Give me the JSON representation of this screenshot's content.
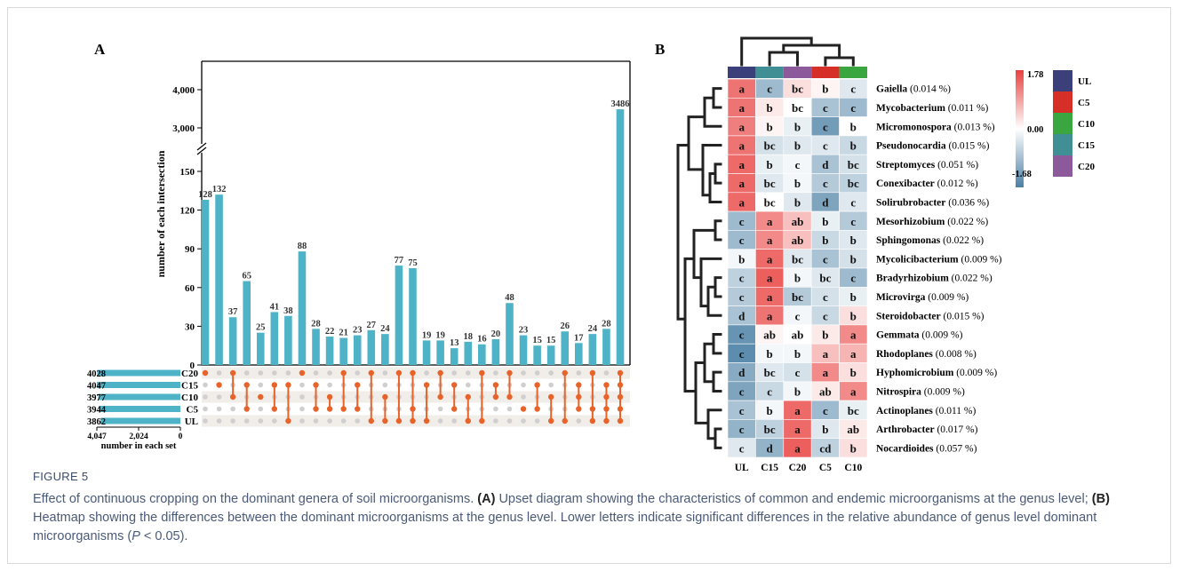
{
  "figure": {
    "label": "FIGURE 5",
    "caption_intro": "Effect of continuous cropping on the dominant genera of soil microorganisms.",
    "caption_a_label": "(A)",
    "caption_a_text": "Upset diagram showing the characteristics of common and endemic microorganisms at the genus level;",
    "caption_b_label": "(B)",
    "caption_b_text": "Heatmap showing the differences between the dominant microorganisms at the genus level. Lower letters indicate significant differences in the relative abundance of genus level dominant microorganisms (",
    "caption_p": "P",
    "caption_tail": " < 0.05)."
  },
  "colors": {
    "bar": "#4fb3c8",
    "dot_active": "#e8632a",
    "dot_inactive": "#cfcfcf",
    "stripe": "#f1ede8",
    "heat_high": "#e8413f",
    "heat_mid": "#ffffff",
    "heat_low": "#4a7fa4",
    "UL": "#3b3f7a",
    "C5": "#d62f27",
    "C10": "#3aa640",
    "C15": "#3f8f94",
    "C20": "#8c5a9a"
  },
  "chart_data": [
    {
      "type": "bar",
      "panel": "A",
      "ylabel": "number of each intersection",
      "ticks_low": [
        "0",
        "30",
        "60",
        "90",
        "120",
        "150"
      ],
      "ticks_high": [
        "3,000",
        "4,000"
      ],
      "values": [
        128,
        132,
        37,
        65,
        25,
        41,
        38,
        88,
        28,
        22,
        21,
        23,
        27,
        24,
        77,
        75,
        19,
        19,
        13,
        18,
        16,
        20,
        48,
        23,
        15,
        15,
        26,
        17,
        24,
        28,
        3486
      ],
      "labels": [
        "128",
        "132",
        "37",
        "65",
        "25",
        "41",
        "38",
        "88",
        "28",
        "22",
        "21",
        "23",
        "27",
        "24",
        "77",
        "75",
        "19",
        "19",
        "13",
        "18",
        "16",
        "20",
        "48",
        "23",
        "15",
        "15",
        "26",
        "17",
        "24",
        "28",
        "3486"
      ],
      "sets": [
        "C20",
        "C15",
        "C10",
        "C5",
        "UL"
      ],
      "set_sizes": [
        4028,
        4047,
        3977,
        3944,
        3862
      ],
      "set_size_labels": [
        "4028",
        "4047",
        "3977",
        "3944",
        "3862"
      ],
      "set_axis_ticks": [
        "4,047",
        "2,024",
        "0"
      ],
      "set_axis_label": "number in each set",
      "membership": [
        [
          0
        ],
        [
          1
        ],
        [
          0,
          2
        ],
        [
          1,
          3
        ],
        [
          2
        ],
        [
          1,
          3
        ],
        [
          1,
          4
        ],
        [
          0
        ],
        [
          1,
          3
        ],
        [
          2,
          3
        ],
        [
          0,
          3
        ],
        [
          1,
          3
        ],
        [
          0,
          4
        ],
        [
          2,
          4
        ],
        [
          0,
          4
        ],
        [
          0,
          3,
          4
        ],
        [
          1,
          4
        ],
        [
          0,
          2
        ],
        [
          1,
          3
        ],
        [
          2,
          4
        ],
        [
          0,
          4
        ],
        [
          1,
          2
        ],
        [
          0,
          2
        ],
        [
          3
        ],
        [
          1,
          3
        ],
        [
          2,
          4
        ],
        [
          0,
          4
        ],
        [
          1,
          2,
          3
        ],
        [
          0,
          3,
          4
        ],
        [
          1,
          2,
          3,
          4
        ],
        [
          0,
          1,
          2,
          3,
          4
        ]
      ]
    },
    {
      "type": "heatmap",
      "panel": "B",
      "columns": [
        "UL",
        "C15",
        "C20",
        "C5",
        "C10"
      ],
      "column_groups": [
        "UL",
        "C15",
        "C20",
        "C5",
        "C10"
      ],
      "rows": [
        {
          "genus": "Gaiella",
          "pct": "(0.014 %)",
          "values": [
            1.3,
            -0.9,
            0.3,
            0.1,
            -0.3
          ],
          "letters": [
            "a",
            "c",
            "bc",
            "b",
            "c"
          ]
        },
        {
          "genus": "Mycobacterium",
          "pct": "(0.011 %)",
          "values": [
            1.3,
            0.2,
            0.0,
            -0.8,
            -0.9
          ],
          "letters": [
            "a",
            "b",
            "bc",
            "c",
            "c"
          ]
        },
        {
          "genus": "Micromonospora",
          "pct": "(0.013 %)",
          "values": [
            1.2,
            0.1,
            -0.2,
            -1.3,
            0.0
          ],
          "letters": [
            "a",
            "b",
            "b",
            "c",
            "b"
          ]
        },
        {
          "genus": "Pseudonocardia",
          "pct": "(0.015 %)",
          "values": [
            1.3,
            -0.4,
            -0.3,
            -0.3,
            -0.5
          ],
          "letters": [
            "a",
            "bc",
            "b",
            "c",
            "b"
          ]
        },
        {
          "genus": "Streptomyces",
          "pct": "(0.051 %)",
          "values": [
            1.4,
            -0.2,
            -0.1,
            -0.8,
            -0.4
          ],
          "letters": [
            "a",
            "b",
            "c",
            "d",
            "bc"
          ]
        },
        {
          "genus": "Conexibacter",
          "pct": "(0.012 %)",
          "values": [
            1.4,
            -0.3,
            -0.1,
            -0.7,
            -0.6
          ],
          "letters": [
            "a",
            "bc",
            "b",
            "c",
            "bc"
          ]
        },
        {
          "genus": "Solirubrobacter",
          "pct": "(0.036 %)",
          "values": [
            1.4,
            0.0,
            -0.3,
            -1.2,
            -0.3
          ],
          "letters": [
            "a",
            "bc",
            "b",
            "d",
            "c"
          ]
        },
        {
          "genus": "Mesorhizobium",
          "pct": "(0.022 %)",
          "values": [
            -0.9,
            1.1,
            0.6,
            -0.2,
            -0.7
          ],
          "letters": [
            "c",
            "a",
            "ab",
            "b",
            "c"
          ]
        },
        {
          "genus": "Sphingomonas",
          "pct": "(0.022 %)",
          "values": [
            -0.9,
            1.1,
            0.6,
            -0.5,
            -0.3
          ],
          "letters": [
            "c",
            "a",
            "ab",
            "b",
            "b"
          ]
        },
        {
          "genus": "Mycolicibacterium",
          "pct": "(0.009 %)",
          "values": [
            -0.1,
            1.4,
            -0.3,
            -0.8,
            -0.4
          ],
          "letters": [
            "b",
            "a",
            "bc",
            "c",
            "b"
          ]
        },
        {
          "genus": "Bradyrhizobium",
          "pct": "(0.022 %)",
          "values": [
            -0.6,
            1.5,
            -0.1,
            -0.3,
            -0.9
          ],
          "letters": [
            "c",
            "a",
            "b",
            "bc",
            "c"
          ]
        },
        {
          "genus": "Microvirga",
          "pct": "(0.009 %)",
          "values": [
            -0.7,
            1.4,
            -0.7,
            -0.4,
            -0.2
          ],
          "letters": [
            "c",
            "a",
            "bc",
            "c",
            "b"
          ]
        },
        {
          "genus": "Steroidobacter",
          "pct": "(0.015 %)",
          "values": [
            -0.8,
            1.3,
            -0.1,
            -0.5,
            0.3
          ],
          "letters": [
            "d",
            "a",
            "c",
            "c",
            "b"
          ]
        },
        {
          "genus": "Gemmata",
          "pct": "(0.009 %)",
          "values": [
            -1.4,
            0.1,
            0.0,
            0.2,
            1.1
          ],
          "letters": [
            "c",
            "ab",
            "ab",
            "b",
            "a"
          ]
        },
        {
          "genus": "Rhodoplanes",
          "pct": "(0.008 %)",
          "values": [
            -1.5,
            -0.1,
            -0.1,
            0.6,
            0.7
          ],
          "letters": [
            "c",
            "b",
            "b",
            "a",
            "a"
          ]
        },
        {
          "genus": "Hyphomicrobium",
          "pct": "(0.009 %)",
          "values": [
            -1.1,
            -0.3,
            -0.4,
            1.1,
            0.3
          ],
          "letters": [
            "d",
            "bc",
            "c",
            "a",
            "b"
          ]
        },
        {
          "genus": "Nitrospira",
          "pct": "(0.009 %)",
          "values": [
            -1.2,
            -0.5,
            -0.1,
            0.2,
            1.1
          ],
          "letters": [
            "c",
            "c",
            "b",
            "ab",
            "a"
          ]
        },
        {
          "genus": "Actinoplanes",
          "pct": "(0.011 %)",
          "values": [
            -0.8,
            -0.1,
            1.4,
            -0.9,
            -0.2
          ],
          "letters": [
            "c",
            "b",
            "a",
            "c",
            "bc"
          ]
        },
        {
          "genus": "Arthrobacter",
          "pct": "(0.017 %)",
          "values": [
            -1.0,
            -0.6,
            1.4,
            -0.3,
            0.2
          ],
          "letters": [
            "c",
            "bc",
            "a",
            "b",
            "ab"
          ]
        },
        {
          "genus": "Nocardioides",
          "pct": "(0.057 %)",
          "values": [
            -0.3,
            -1.0,
            1.5,
            -0.6,
            0.3
          ],
          "letters": [
            "c",
            "d",
            "a",
            "cd",
            "b"
          ]
        }
      ],
      "scale_labels": [
        "1.78",
        "0.00",
        "-1.68"
      ],
      "scale_range": [
        -1.68,
        1.78
      ],
      "legend": [
        "UL",
        "C5",
        "C10",
        "C15",
        "C20"
      ]
    }
  ],
  "panel_labels": [
    "A",
    "B"
  ]
}
